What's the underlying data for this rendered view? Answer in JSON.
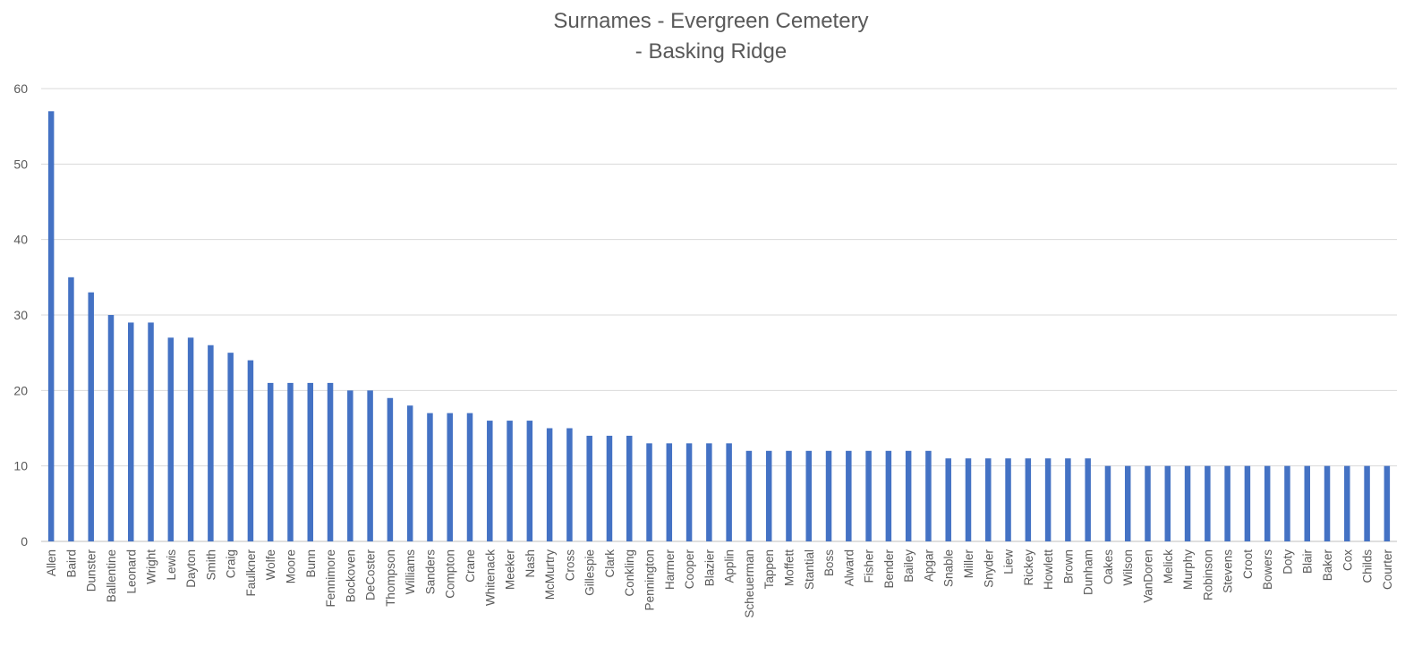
{
  "chart_data": {
    "type": "bar",
    "title_lines": [
      "Surnames - Evergreen Cemetery",
      "- Basking Ridge"
    ],
    "xlabel": "",
    "ylabel": "",
    "ylim": [
      0,
      60
    ],
    "yticks": [
      0,
      10,
      20,
      30,
      40,
      50,
      60
    ],
    "grid": true,
    "legend": "none",
    "bar_color": "#4472C4",
    "categories": [
      "Allen",
      "Baird",
      "Dunster",
      "Ballentine",
      "Leonard",
      "Wright",
      "Lewis",
      "Dayton",
      "Smith",
      "Craig",
      "Faulkner",
      "Wolfe",
      "Moore",
      "Bunn",
      "Fennimore",
      "Bockoven",
      "DeCoster",
      "Thompson",
      "Williams",
      "Sanders",
      "Compton",
      "Crane",
      "Whitenack",
      "Meeker",
      "Nash",
      "McMurtry",
      "Cross",
      "Gillespie",
      "Clark",
      "Conkling",
      "Pennington",
      "Harmer",
      "Cooper",
      "Blazier",
      "Applin",
      "Scheuerman",
      "Tappen",
      "Moffett",
      "Stantial",
      "Boss",
      "Alward",
      "Fisher",
      "Bender",
      "Bailey",
      "Apgar",
      "Snable",
      "Miller",
      "Snyder",
      "Liew",
      "Rickey",
      "Howlett",
      "Brown",
      "Dunham",
      "Oakes",
      "Wilson",
      "VanDoren",
      "Melick",
      "Murphy",
      "Robinson",
      "Stevens",
      "Croot",
      "Bowers",
      "Doty",
      "Blair",
      "Baker",
      "Cox",
      "Childs",
      "Courter"
    ],
    "values": [
      57,
      35,
      33,
      30,
      29,
      29,
      27,
      27,
      26,
      25,
      24,
      21,
      21,
      21,
      21,
      20,
      20,
      19,
      18,
      17,
      17,
      17,
      16,
      16,
      16,
      15,
      15,
      14,
      14,
      14,
      13,
      13,
      13,
      13,
      13,
      12,
      12,
      12,
      12,
      12,
      12,
      12,
      12,
      12,
      12,
      11,
      11,
      11,
      11,
      11,
      11,
      11,
      11,
      10,
      10,
      10,
      10,
      10,
      10,
      10,
      10,
      10,
      10,
      10,
      10,
      10,
      10,
      10
    ]
  }
}
